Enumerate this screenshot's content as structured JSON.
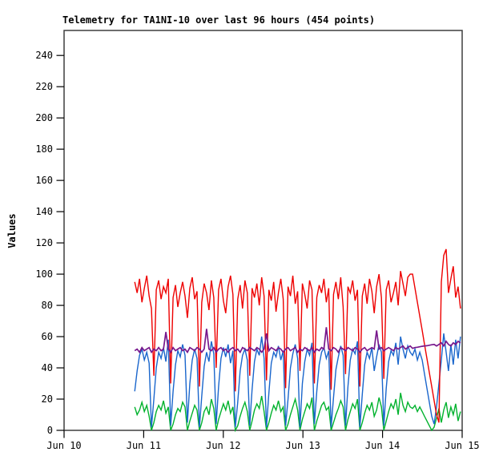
{
  "colors": {
    "background": "#ffffff",
    "plot_border": "#3f3f3f",
    "axis": "#000000",
    "text": "#000000"
  },
  "chart_data": {
    "type": "line",
    "title": "Telemetry for TA1NI-10 over last 96 hours (454 points)",
    "xlabel": "",
    "ylabel": "Values",
    "point_count_labeled": 454,
    "grid": false,
    "legend": "none",
    "ylim": [
      0,
      256
    ],
    "y_ticks": [
      0,
      20,
      40,
      60,
      80,
      100,
      120,
      140,
      160,
      180,
      200,
      220,
      240
    ],
    "xlim_hours": [
      0,
      120
    ],
    "x_tick_hours": [
      0,
      24,
      48,
      72,
      96,
      120
    ],
    "x_tick_labels": [
      "Jun 10",
      "Jun 11",
      "Jun 12",
      "Jun 13",
      "Jun 14",
      "Jun 15"
    ],
    "x_start_hours": 21.3,
    "x_step_hours": 0.722,
    "series": [
      {
        "name": "green",
        "color": "#00b22d",
        "stroke_width": 1.4,
        "values": [
          15,
          10,
          13,
          18,
          12,
          16,
          9,
          0,
          5,
          12,
          16,
          13,
          19,
          11,
          15,
          0,
          4,
          10,
          14,
          12,
          18,
          15,
          0,
          6,
          11,
          16,
          13,
          0,
          5,
          12,
          15,
          10,
          20,
          14,
          0,
          7,
          12,
          17,
          13,
          19,
          11,
          15,
          0,
          3,
          9,
          14,
          18,
          12,
          0,
          6,
          13,
          17,
          14,
          22,
          12,
          0,
          5,
          11,
          16,
          13,
          19,
          12,
          15,
          0,
          4,
          10,
          15,
          20,
          13,
          0,
          7,
          12,
          17,
          14,
          21,
          0,
          6,
          11,
          16,
          18,
          13,
          15,
          0,
          5,
          10,
          14,
          19,
          15,
          0,
          7,
          12,
          17,
          14,
          20,
          0,
          5,
          11,
          16,
          13,
          18,
          9,
          13,
          21,
          15,
          0,
          6,
          12,
          17,
          14,
          20,
          10,
          24,
          16,
          12,
          18,
          15,
          14,
          16,
          12,
          15,
          12,
          9,
          6,
          3,
          0,
          2,
          8,
          14,
          5,
          13,
          18,
          8,
          15,
          10,
          17,
          6,
          12
        ]
      },
      {
        "name": "blue",
        "color": "#1a66cc",
        "stroke_width": 1.4,
        "values": [
          25,
          38,
          48,
          52,
          45,
          50,
          43,
          2,
          20,
          40,
          50,
          46,
          53,
          44,
          58,
          3,
          25,
          42,
          51,
          47,
          55,
          48,
          5,
          30,
          45,
          52,
          46,
          2,
          22,
          41,
          50,
          44,
          57,
          49,
          4,
          28,
          46,
          53,
          47,
          55,
          43,
          51,
          2,
          18,
          38,
          48,
          52,
          45,
          3,
          26,
          44,
          52,
          48,
          60,
          46,
          2,
          24,
          43,
          50,
          47,
          54,
          45,
          51,
          3,
          20,
          40,
          49,
          55,
          46,
          2,
          30,
          44,
          52,
          48,
          56,
          4,
          25,
          42,
          50,
          53,
          46,
          51,
          2,
          21,
          39,
          47,
          54,
          48,
          3,
          28,
          45,
          52,
          49,
          57,
          2,
          23,
          42,
          50,
          46,
          53,
          38,
          47,
          55,
          50,
          3,
          27,
          44,
          51,
          48,
          56,
          42,
          60,
          52,
          46,
          54,
          50,
          48,
          52,
          45,
          50,
          45,
          36,
          27,
          18,
          9,
          4,
          15,
          30,
          45,
          62,
          50,
          38,
          55,
          42,
          58,
          46,
          60
        ]
      },
      {
        "name": "red",
        "color": "#ee0000",
        "stroke_width": 1.4,
        "values": [
          95,
          88,
          97,
          82,
          91,
          99,
          86,
          78,
          35,
          90,
          96,
          84,
          92,
          88,
          97,
          30,
          85,
          93,
          79,
          88,
          95,
          86,
          72,
          91,
          98,
          84,
          89,
          28,
          82,
          94,
          88,
          77,
          96,
          85,
          40,
          90,
          97,
          83,
          75,
          92,
          99,
          87,
          25,
          84,
          93,
          78,
          96,
          88,
          35,
          91,
          85,
          94,
          80,
          98,
          86,
          32,
          90,
          83,
          95,
          76,
          88,
          97,
          84,
          27,
          92,
          86,
          99,
          81,
          89,
          38,
          94,
          87,
          78,
          96,
          90,
          30,
          85,
          93,
          88,
          97,
          82,
          91,
          26,
          87,
          95,
          84,
          98,
          79,
          36,
          92,
          88,
          96,
          83,
          90,
          28,
          86,
          94,
          81,
          97,
          89,
          75,
          92,
          100,
          85,
          33,
          90,
          96,
          82,
          88,
          95,
          80,
          102,
          94,
          86,
          98,
          100,
          100,
          91,
          82,
          73,
          64,
          55,
          46,
          37,
          28,
          19,
          10,
          5,
          95,
          112,
          116,
          88,
          97,
          105,
          85,
          92,
          78
        ]
      },
      {
        "name": "purple",
        "color": "#78188c",
        "stroke_width": 1.7,
        "values": [
          51,
          52,
          50,
          53,
          51,
          52,
          53,
          50,
          52,
          51,
          53,
          51,
          52,
          63,
          52,
          50,
          53,
          51,
          52,
          53,
          51,
          52,
          50,
          53,
          52,
          51,
          53,
          52,
          50,
          52,
          65,
          52,
          51,
          53,
          50,
          52,
          53,
          51,
          52,
          50,
          52,
          53,
          51,
          52,
          50,
          53,
          52,
          51,
          53,
          52,
          51,
          53,
          52,
          50,
          52,
          62,
          51,
          53,
          52,
          51,
          53,
          52,
          50,
          52,
          53,
          51,
          52,
          53,
          50,
          52,
          51,
          53,
          52,
          51,
          53,
          50,
          52,
          51,
          53,
          52,
          66,
          52,
          51,
          53,
          52,
          50,
          53,
          52,
          51,
          53,
          52,
          51,
          53,
          52,
          50,
          52,
          53,
          51,
          52,
          53,
          52,
          64,
          52,
          53,
          51,
          52,
          53,
          52,
          51,
          53,
          52,
          53,
          54,
          52,
          53,
          54,
          52.5,
          53,
          53.2,
          53.5,
          53.8,
          54,
          54.2,
          54.5,
          54.8,
          55,
          54,
          55,
          56,
          54,
          57,
          55,
          54,
          56,
          55,
          57,
          56
        ]
      }
    ]
  }
}
